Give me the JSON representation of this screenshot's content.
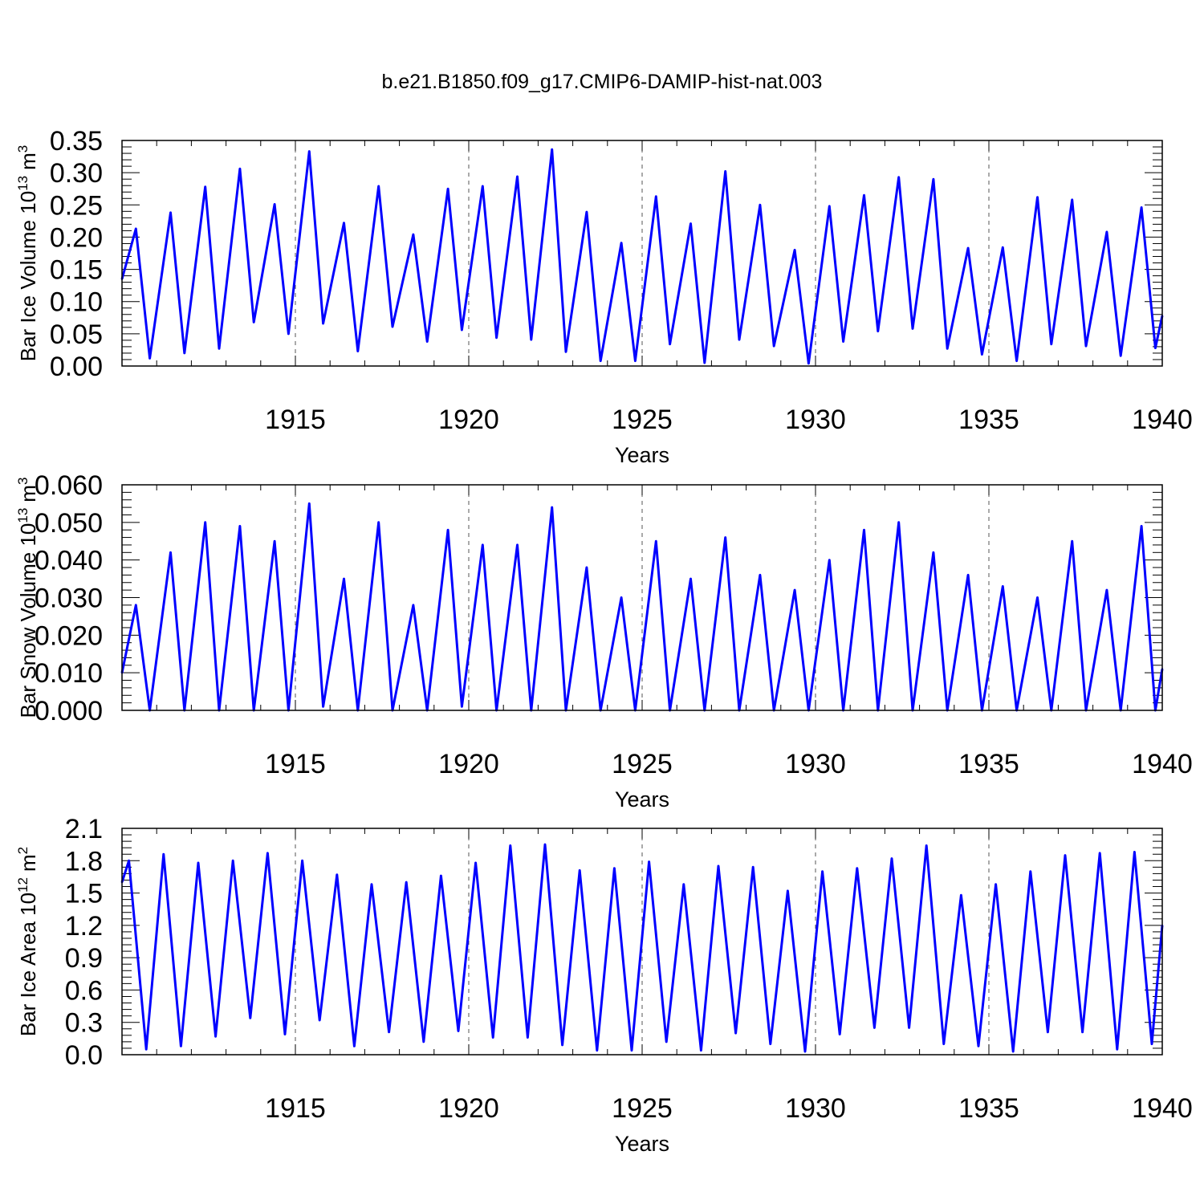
{
  "title": "b.e21.B1850.f09_g17.CMIP6-DAMIP-hist-nat.003",
  "line_color": "#0000ff",
  "chart_data": [
    {
      "type": "line",
      "title": "b.e21.B1850.f09_g17.CMIP6-DAMIP-hist-nat.003",
      "xlabel": "Years",
      "ylabel": "Bar Ice Volume 10",
      "ylabel_sup": "13",
      "ylabel_unit": "m",
      "ylabel_unit_sup": "3",
      "xlim": [
        1910.0,
        1940.0
      ],
      "ylim": [
        0.0,
        0.35
      ],
      "xticks": [
        "1915",
        "1920",
        "1925",
        "1930",
        "1935",
        "1940"
      ],
      "yticks": [
        "0.00",
        "0.05",
        "0.10",
        "0.15",
        "0.20",
        "0.25",
        "0.30",
        "0.35"
      ],
      "grid": "dashed vertical lines at labeled years",
      "series": [
        {
          "peaks": [
            [
              1910.4,
              0.213
            ],
            [
              1911.4,
              0.238
            ],
            [
              1912.4,
              0.278
            ],
            [
              1913.4,
              0.306
            ],
            [
              1914.4,
              0.251
            ],
            [
              1915.4,
              0.333
            ],
            [
              1916.4,
              0.222
            ],
            [
              1917.4,
              0.279
            ],
            [
              1918.4,
              0.204
            ],
            [
              1919.4,
              0.275
            ],
            [
              1920.4,
              0.279
            ],
            [
              1921.4,
              0.294
            ],
            [
              1922.4,
              0.336
            ],
            [
              1923.4,
              0.239
            ],
            [
              1924.4,
              0.191
            ],
            [
              1925.4,
              0.263
            ],
            [
              1926.4,
              0.221
            ],
            [
              1927.4,
              0.302
            ],
            [
              1928.4,
              0.25
            ],
            [
              1929.4,
              0.18
            ],
            [
              1930.4,
              0.248
            ],
            [
              1931.4,
              0.265
            ],
            [
              1932.4,
              0.293
            ],
            [
              1933.4,
              0.29
            ],
            [
              1934.4,
              0.183
            ],
            [
              1935.4,
              0.184
            ],
            [
              1936.4,
              0.262
            ],
            [
              1937.4,
              0.258
            ],
            [
              1938.4,
              0.208
            ],
            [
              1939.4,
              0.246
            ]
          ],
          "troughs": [
            [
              1910.0,
              0.135
            ],
            [
              1910.8,
              0.012
            ],
            [
              1911.8,
              0.02
            ],
            [
              1912.8,
              0.027
            ],
            [
              1913.8,
              0.068
            ],
            [
              1914.8,
              0.05
            ],
            [
              1915.8,
              0.066
            ],
            [
              1916.8,
              0.023
            ],
            [
              1917.8,
              0.061
            ],
            [
              1918.8,
              0.038
            ],
            [
              1919.8,
              0.056
            ],
            [
              1920.8,
              0.044
            ],
            [
              1921.8,
              0.041
            ],
            [
              1922.8,
              0.022
            ],
            [
              1923.8,
              0.008
            ],
            [
              1924.8,
              0.008
            ],
            [
              1925.8,
              0.034
            ],
            [
              1926.8,
              0.005
            ],
            [
              1927.8,
              0.041
            ],
            [
              1928.8,
              0.031
            ],
            [
              1929.8,
              0.004
            ],
            [
              1930.8,
              0.038
            ],
            [
              1931.8,
              0.054
            ],
            [
              1932.8,
              0.058
            ],
            [
              1933.8,
              0.027
            ],
            [
              1934.8,
              0.018
            ],
            [
              1935.8,
              0.008
            ],
            [
              1936.8,
              0.034
            ],
            [
              1937.8,
              0.031
            ],
            [
              1938.8,
              0.016
            ],
            [
              1939.8,
              0.028
            ],
            [
              1940.0,
              0.078
            ]
          ]
        }
      ]
    },
    {
      "type": "line",
      "xlabel": "Years",
      "ylabel": "Bar Snow Volume 10",
      "ylabel_sup": "13",
      "ylabel_unit": "m",
      "ylabel_unit_sup": "3",
      "xlim": [
        1910.0,
        1940.0
      ],
      "ylim": [
        0.0,
        0.06
      ],
      "xticks": [
        "1915",
        "1920",
        "1925",
        "1930",
        "1935",
        "1940"
      ],
      "yticks": [
        "0.000",
        "0.010",
        "0.020",
        "0.030",
        "0.040",
        "0.050",
        "0.060"
      ],
      "grid": "dashed vertical lines at labeled years",
      "series": [
        {
          "peaks": [
            [
              1910.4,
              0.028
            ],
            [
              1911.4,
              0.042
            ],
            [
              1912.4,
              0.05
            ],
            [
              1913.4,
              0.049
            ],
            [
              1914.4,
              0.045
            ],
            [
              1915.4,
              0.055
            ],
            [
              1916.4,
              0.035
            ],
            [
              1917.4,
              0.05
            ],
            [
              1918.4,
              0.028
            ],
            [
              1919.4,
              0.048
            ],
            [
              1920.4,
              0.044
            ],
            [
              1921.4,
              0.044
            ],
            [
              1922.4,
              0.054
            ],
            [
              1923.4,
              0.038
            ],
            [
              1924.4,
              0.03
            ],
            [
              1925.4,
              0.045
            ],
            [
              1926.4,
              0.035
            ],
            [
              1927.4,
              0.046
            ],
            [
              1928.4,
              0.036
            ],
            [
              1929.4,
              0.032
            ],
            [
              1930.4,
              0.04
            ],
            [
              1931.4,
              0.048
            ],
            [
              1932.4,
              0.05
            ],
            [
              1933.4,
              0.042
            ],
            [
              1934.4,
              0.036
            ],
            [
              1935.4,
              0.033
            ],
            [
              1936.4,
              0.03
            ],
            [
              1937.4,
              0.045
            ],
            [
              1938.4,
              0.032
            ],
            [
              1939.4,
              0.049
            ]
          ],
          "troughs": [
            [
              1910.0,
              0.01
            ],
            [
              1910.8,
              0.0
            ],
            [
              1911.8,
              0.0
            ],
            [
              1912.8,
              0.0
            ],
            [
              1913.8,
              0.0
            ],
            [
              1914.8,
              0.0
            ],
            [
              1915.8,
              0.001
            ],
            [
              1916.8,
              0.0
            ],
            [
              1917.8,
              0.0
            ],
            [
              1918.8,
              0.0
            ],
            [
              1919.8,
              0.001
            ],
            [
              1920.8,
              0.0
            ],
            [
              1921.8,
              0.0
            ],
            [
              1922.8,
              0.0
            ],
            [
              1923.8,
              0.0
            ],
            [
              1924.8,
              0.0
            ],
            [
              1925.8,
              0.0
            ],
            [
              1926.8,
              0.0
            ],
            [
              1927.8,
              0.0
            ],
            [
              1928.8,
              0.0
            ],
            [
              1929.8,
              0.0
            ],
            [
              1930.8,
              0.0
            ],
            [
              1931.8,
              0.0
            ],
            [
              1932.8,
              0.0
            ],
            [
              1933.8,
              0.0
            ],
            [
              1934.8,
              0.0
            ],
            [
              1935.8,
              0.0
            ],
            [
              1936.8,
              0.0
            ],
            [
              1937.8,
              0.0
            ],
            [
              1938.8,
              0.0
            ],
            [
              1939.8,
              0.0
            ],
            [
              1940.0,
              0.011
            ]
          ]
        }
      ]
    },
    {
      "type": "line",
      "xlabel": "Years",
      "ylabel": "Bar Ice Area 10",
      "ylabel_sup": "12",
      "ylabel_unit": "m",
      "ylabel_unit_sup": "2",
      "xlim": [
        1910.0,
        1940.0
      ],
      "ylim": [
        0.0,
        2.1
      ],
      "xticks": [
        "1915",
        "1920",
        "1925",
        "1930",
        "1935",
        "1940"
      ],
      "yticks": [
        "0.0",
        "0.3",
        "0.6",
        "0.9",
        "1.2",
        "1.5",
        "1.8",
        "2.1"
      ],
      "grid": "dashed vertical lines at labeled years",
      "series": [
        {
          "peaks": [
            [
              1910.2,
              1.8
            ],
            [
              1911.2,
              1.86
            ],
            [
              1912.2,
              1.78
            ],
            [
              1913.2,
              1.8
            ],
            [
              1914.2,
              1.87
            ],
            [
              1915.2,
              1.8
            ],
            [
              1916.2,
              1.67
            ],
            [
              1917.2,
              1.58
            ],
            [
              1918.2,
              1.6
            ],
            [
              1919.2,
              1.66
            ],
            [
              1920.2,
              1.78
            ],
            [
              1921.2,
              1.94
            ],
            [
              1922.2,
              1.95
            ],
            [
              1923.2,
              1.71
            ],
            [
              1924.2,
              1.73
            ],
            [
              1925.2,
              1.79
            ],
            [
              1926.2,
              1.58
            ],
            [
              1927.2,
              1.75
            ],
            [
              1928.2,
              1.74
            ],
            [
              1929.2,
              1.52
            ],
            [
              1930.2,
              1.7
            ],
            [
              1931.2,
              1.73
            ],
            [
              1932.2,
              1.82
            ],
            [
              1933.2,
              1.94
            ],
            [
              1934.2,
              1.48
            ],
            [
              1935.2,
              1.58
            ],
            [
              1936.2,
              1.7
            ],
            [
              1937.2,
              1.85
            ],
            [
              1938.2,
              1.87
            ],
            [
              1939.2,
              1.88
            ]
          ],
          "troughs": [
            [
              1910.0,
              1.6
            ],
            [
              1910.7,
              0.05
            ],
            [
              1911.7,
              0.08
            ],
            [
              1912.7,
              0.17
            ],
            [
              1913.7,
              0.34
            ],
            [
              1914.7,
              0.19
            ],
            [
              1915.7,
              0.32
            ],
            [
              1916.7,
              0.08
            ],
            [
              1917.7,
              0.21
            ],
            [
              1918.7,
              0.12
            ],
            [
              1919.7,
              0.22
            ],
            [
              1920.7,
              0.16
            ],
            [
              1921.7,
              0.16
            ],
            [
              1922.7,
              0.09
            ],
            [
              1923.7,
              0.04
            ],
            [
              1924.7,
              0.04
            ],
            [
              1925.7,
              0.12
            ],
            [
              1926.7,
              0.04
            ],
            [
              1927.7,
              0.2
            ],
            [
              1928.7,
              0.1
            ],
            [
              1929.7,
              0.03
            ],
            [
              1930.7,
              0.19
            ],
            [
              1931.7,
              0.25
            ],
            [
              1932.7,
              0.25
            ],
            [
              1933.7,
              0.1
            ],
            [
              1934.7,
              0.08
            ],
            [
              1935.7,
              0.03
            ],
            [
              1936.7,
              0.21
            ],
            [
              1937.7,
              0.21
            ],
            [
              1938.7,
              0.05
            ],
            [
              1939.7,
              0.1
            ],
            [
              1940.0,
              1.2
            ]
          ]
        }
      ]
    }
  ]
}
